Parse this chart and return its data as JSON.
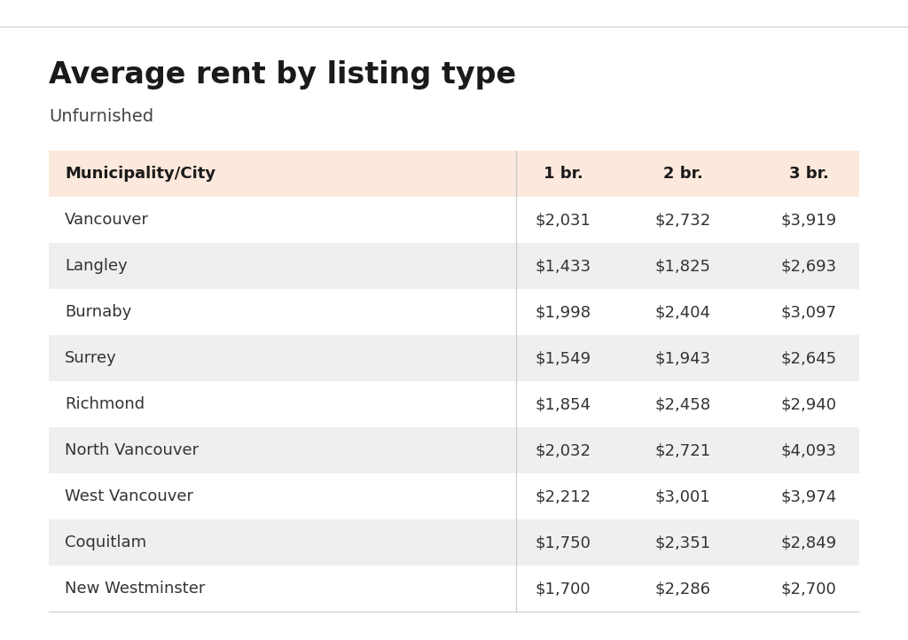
{
  "title": "Average rent by listing type",
  "subtitle": "Unfurnished",
  "columns": [
    "Municipality/City",
    "1 br.",
    "2 br.",
    "3 br."
  ],
  "rows": [
    [
      "Vancouver",
      "$2,031",
      "$2,732",
      "$3,919"
    ],
    [
      "Langley",
      "$1,433",
      "$1,825",
      "$2,693"
    ],
    [
      "Burnaby",
      "$1,998",
      "$2,404",
      "$3,097"
    ],
    [
      "Surrey",
      "$1,549",
      "$1,943",
      "$2,645"
    ],
    [
      "Richmond",
      "$1,854",
      "$2,458",
      "$2,940"
    ],
    [
      "North Vancouver",
      "$2,032",
      "$2,721",
      "$4,093"
    ],
    [
      "West Vancouver",
      "$2,212",
      "$3,001",
      "$3,974"
    ],
    [
      "Coquitlam",
      "$1,750",
      "$2,351",
      "$2,849"
    ],
    [
      "New Westminster",
      "$1,700",
      "$2,286",
      "$2,700"
    ]
  ],
  "header_bg_color": "#fce8dc",
  "alt_row_color": "#efefef",
  "white_row_color": "#ffffff",
  "bg_color": "#ffffff",
  "title_color": "#1a1a1a",
  "subtitle_color": "#444444",
  "header_text_color": "#1a1a1a",
  "body_text_color": "#333333",
  "title_fontsize": 24,
  "subtitle_fontsize": 14,
  "header_fontsize": 13,
  "body_fontsize": 13,
  "top_border_color": "#cccccc",
  "separator_color": "#cccccc",
  "fig_width": 10.24,
  "fig_height": 7.22,
  "dpi": 100
}
